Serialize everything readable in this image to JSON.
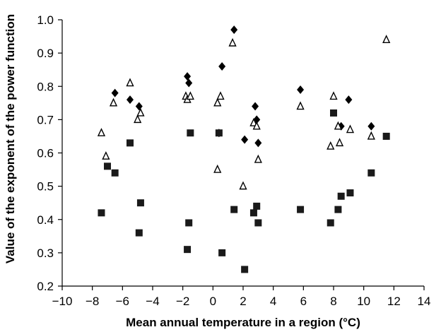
{
  "chart_data": {
    "type": "scatter",
    "xlabel": "Mean annual temperature in a region (°C)",
    "ylabel": "Value of the exponent of the power function",
    "xlim": [
      -10,
      14
    ],
    "ylim": [
      0.2,
      1.0
    ],
    "x_ticks": [
      -10,
      -8,
      -6,
      -4,
      -2,
      0,
      2,
      4,
      6,
      8,
      10,
      12,
      14
    ],
    "x_tick_labels": [
      "−10",
      "−8",
      "−6",
      "−4",
      "−2",
      "0",
      "2",
      "4",
      "6",
      "8",
      "10",
      "12",
      "14"
    ],
    "y_ticks": [
      0.2,
      0.3,
      0.4,
      0.5,
      0.6,
      0.7,
      0.8,
      0.9,
      1.0
    ],
    "y_tick_labels": [
      "0.2",
      "0.3",
      "0.4",
      "0.5",
      "0.6",
      "0.7",
      "0.8",
      "0.9",
      "1.0"
    ],
    "grid": false,
    "legend": "none",
    "series": [
      {
        "marker": "filled-diamond",
        "color": "#000000",
        "points": [
          [
            -6.5,
            0.78
          ],
          [
            -5.5,
            0.76
          ],
          [
            -4.9,
            0.74
          ],
          [
            -1.7,
            0.83
          ],
          [
            -1.6,
            0.81
          ],
          [
            0.4,
            0.66
          ],
          [
            0.6,
            0.86
          ],
          [
            1.4,
            0.97
          ],
          [
            2.1,
            0.64
          ],
          [
            2.8,
            0.74
          ],
          [
            2.9,
            0.7
          ],
          [
            3.0,
            0.63
          ],
          [
            5.8,
            0.79
          ],
          [
            8.5,
            0.68
          ],
          [
            9.0,
            0.76
          ],
          [
            10.5,
            0.68
          ]
        ]
      },
      {
        "marker": "open-triangle",
        "color": "#000000",
        "points": [
          [
            -7.4,
            0.66
          ],
          [
            -7.1,
            0.59
          ],
          [
            -6.6,
            0.75
          ],
          [
            -5.5,
            0.81
          ],
          [
            -5.0,
            0.7
          ],
          [
            -4.8,
            0.72
          ],
          [
            -1.8,
            0.77
          ],
          [
            -1.7,
            0.76
          ],
          [
            -1.5,
            0.77
          ],
          [
            0.3,
            0.55
          ],
          [
            0.3,
            0.75
          ],
          [
            0.5,
            0.77
          ],
          [
            1.3,
            0.93
          ],
          [
            2.0,
            0.5
          ],
          [
            2.7,
            0.69
          ],
          [
            2.9,
            0.68
          ],
          [
            3.0,
            0.58
          ],
          [
            5.8,
            0.74
          ],
          [
            7.8,
            0.62
          ],
          [
            8.0,
            0.77
          ],
          [
            8.3,
            0.68
          ],
          [
            8.4,
            0.63
          ],
          [
            9.1,
            0.67
          ],
          [
            10.5,
            0.65
          ],
          [
            11.5,
            0.94
          ]
        ]
      },
      {
        "marker": "filled-square",
        "color": "#1a1a1a",
        "points": [
          [
            -7.4,
            0.42
          ],
          [
            -7.0,
            0.56
          ],
          [
            -6.5,
            0.54
          ],
          [
            -5.5,
            0.63
          ],
          [
            -4.9,
            0.36
          ],
          [
            -4.8,
            0.45
          ],
          [
            -1.7,
            0.31
          ],
          [
            -1.6,
            0.39
          ],
          [
            -1.5,
            0.66
          ],
          [
            0.4,
            0.66
          ],
          [
            0.6,
            0.3
          ],
          [
            1.4,
            0.43
          ],
          [
            2.1,
            0.25
          ],
          [
            2.7,
            0.42
          ],
          [
            2.9,
            0.44
          ],
          [
            3.0,
            0.39
          ],
          [
            5.8,
            0.43
          ],
          [
            7.8,
            0.39
          ],
          [
            8.0,
            0.72
          ],
          [
            8.3,
            0.43
          ],
          [
            8.5,
            0.47
          ],
          [
            9.1,
            0.48
          ],
          [
            10.5,
            0.54
          ],
          [
            11.5,
            0.65
          ]
        ]
      }
    ]
  }
}
